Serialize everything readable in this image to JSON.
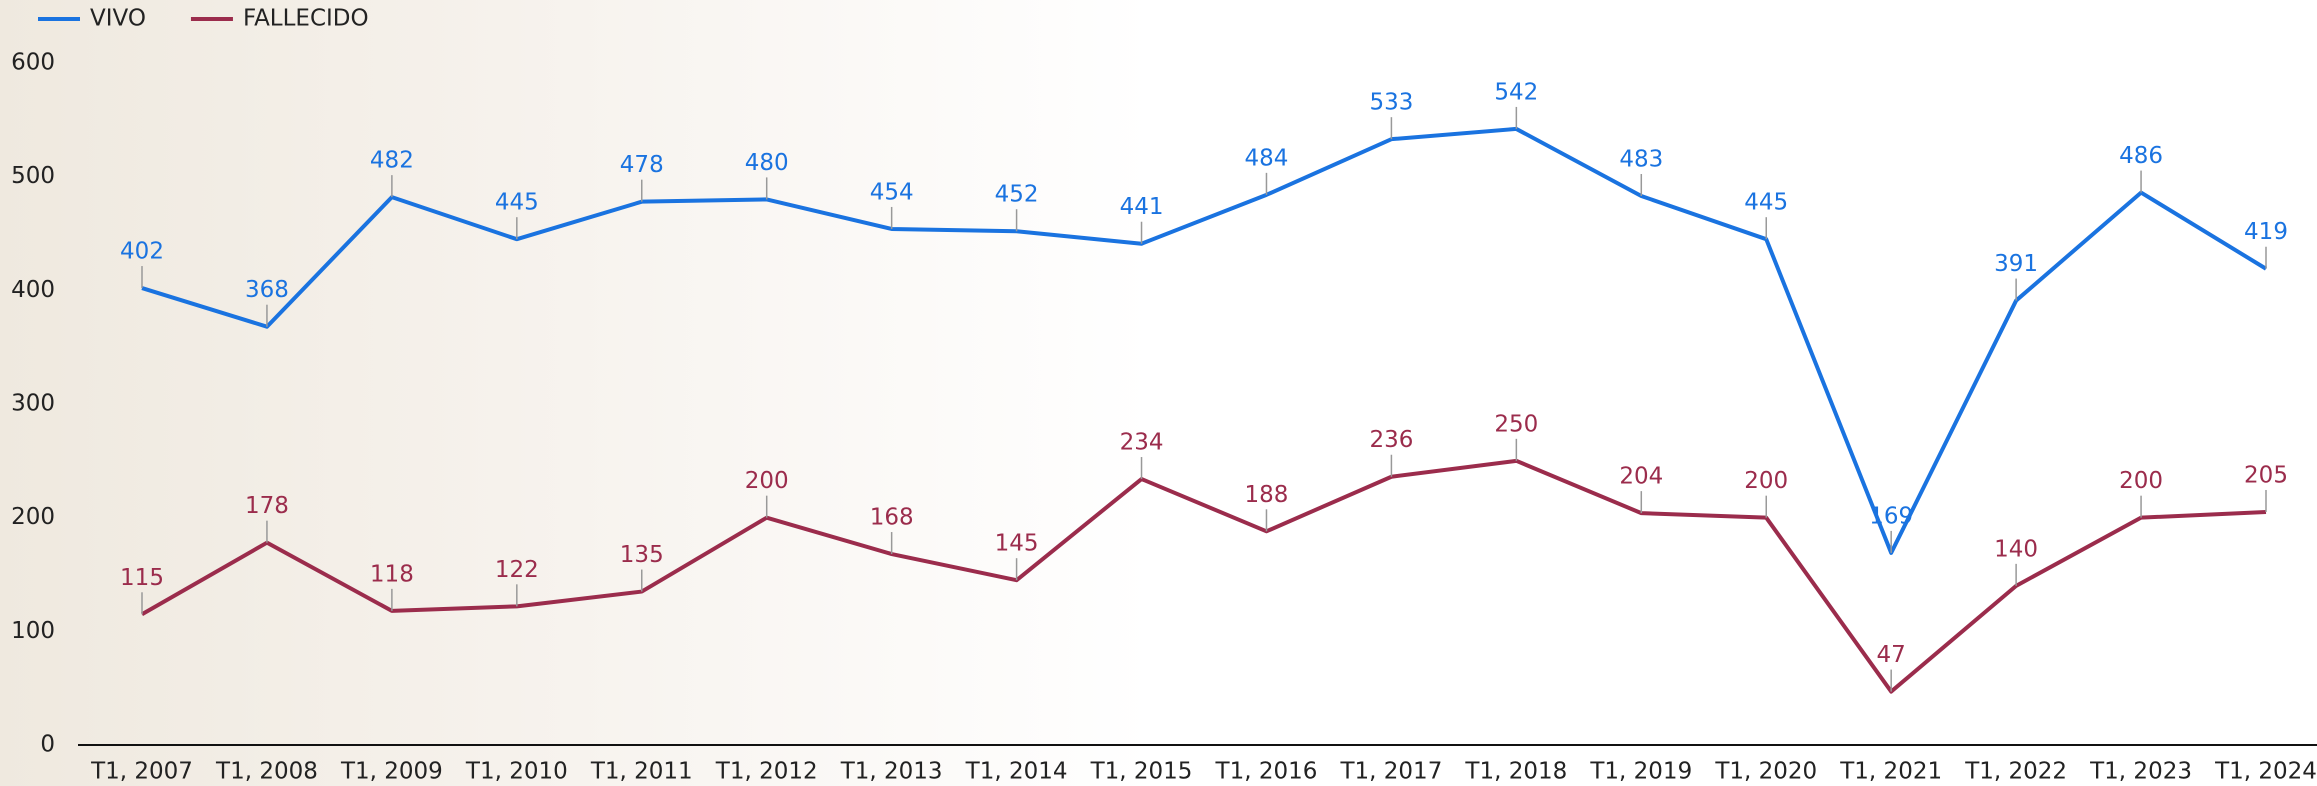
{
  "chart_data": {
    "type": "line",
    "categories": [
      "T1, 2007",
      "T1, 2008",
      "T1, 2009",
      "T1, 2010",
      "T1, 2011",
      "T1, 2012",
      "T1, 2013",
      "T1, 2014",
      "T1, 2015",
      "T1, 2016",
      "T1, 2017",
      "T1, 2018",
      "T1, 2019",
      "T1, 2020",
      "T1, 2021",
      "T1, 2022",
      "T1, 2023",
      "T1, 2024"
    ],
    "series": [
      {
        "name": "VIVO",
        "color": "#1a73e0",
        "values": [
          402,
          368,
          482,
          445,
          478,
          480,
          454,
          452,
          441,
          484,
          533,
          542,
          483,
          445,
          169,
          391,
          486,
          419
        ]
      },
      {
        "name": "FALLECIDO",
        "color": "#9b2c4c",
        "values": [
          115,
          178,
          118,
          122,
          135,
          200,
          168,
          145,
          234,
          188,
          236,
          250,
          204,
          200,
          47,
          140,
          200,
          205
        ]
      }
    ],
    "ylim": [
      0,
      600
    ],
    "yticks": [
      0,
      100,
      200,
      300,
      400,
      500,
      600
    ],
    "legend": "top-left"
  }
}
